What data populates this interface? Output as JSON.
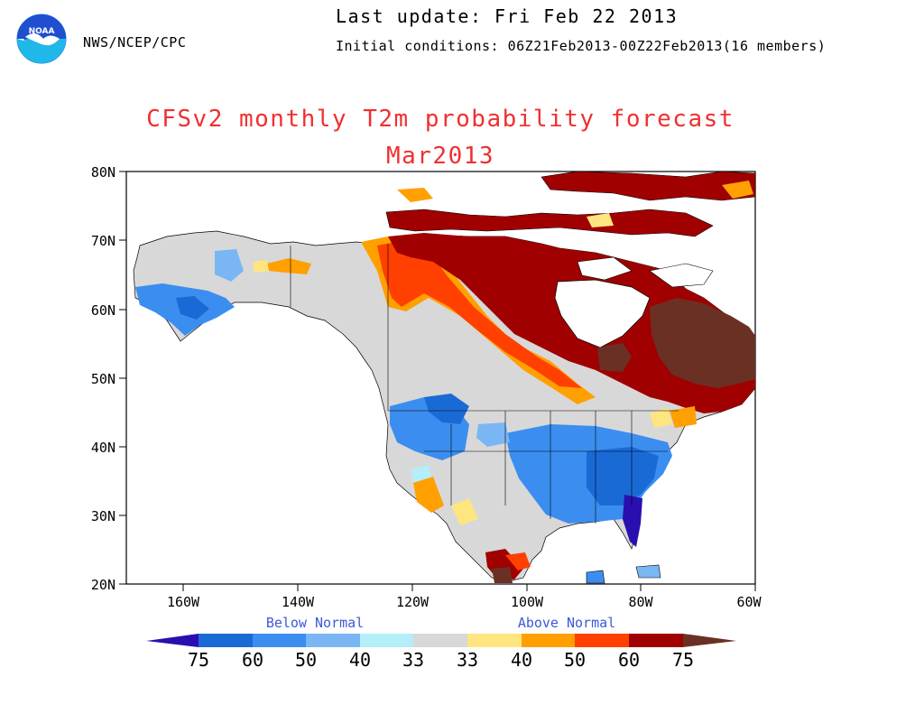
{
  "header": {
    "agency": "NWS/NCEP/CPC",
    "last_update": "Last update: Fri Feb 22 2013",
    "initial_conditions": "Initial conditions: 06Z21Feb2013-00Z22Feb2013(16 members)"
  },
  "logo": {
    "text": "NOAA",
    "icon": "noaa-logo-icon"
  },
  "map": {
    "title": "CFSv2 monthly T2m probability forecast",
    "subtitle": "Mar2013",
    "lat_labels": [
      "80N",
      "70N",
      "60N",
      "50N",
      "40N",
      "30N",
      "20N"
    ],
    "lon_labels": [
      "160W",
      "140W",
      "120W",
      "100W",
      "80W",
      "60W"
    ],
    "region": "North America",
    "extent": {
      "lon": [
        -170,
        -60
      ],
      "lat": [
        20,
        80
      ]
    }
  },
  "legend": {
    "below_label": "Below Normal",
    "above_label": "Above Normal",
    "tick_labels": [
      "75",
      "60",
      "50",
      "40",
      "33",
      "33",
      "40",
      "50",
      "60",
      "75"
    ],
    "colors": {
      "below_75": "#2a0fb0",
      "below_60": "#1a6ad6",
      "below_50": "#3b8ef0",
      "below_40": "#7ab6f4",
      "below_33": "#b4eef8",
      "normal": "#d8d8d8",
      "above_40": "#ffe580",
      "above_50": "#ffa000",
      "above_60": "#ff4000",
      "above_75": "#a00000",
      "above_max": "#6b3024"
    }
  },
  "colors": {
    "title": "#f03030",
    "legend_category": "#3a5ad8"
  }
}
